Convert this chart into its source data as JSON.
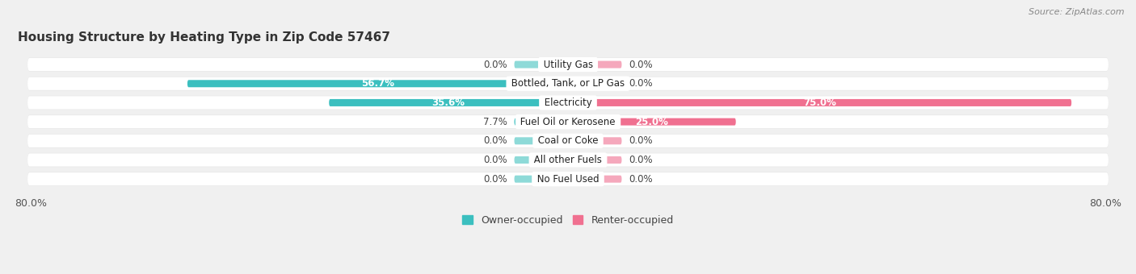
{
  "title": "Housing Structure by Heating Type in Zip Code 57467",
  "source": "Source: ZipAtlas.com",
  "categories": [
    "Utility Gas",
    "Bottled, Tank, or LP Gas",
    "Electricity",
    "Fuel Oil or Kerosene",
    "Coal or Coke",
    "All other Fuels",
    "No Fuel Used"
  ],
  "owner_values": [
    0.0,
    56.7,
    35.6,
    7.7,
    0.0,
    0.0,
    0.0
  ],
  "renter_values": [
    0.0,
    0.0,
    75.0,
    25.0,
    0.0,
    0.0,
    0.0
  ],
  "owner_color": "#3BBFBF",
  "renter_color": "#F07090",
  "owner_stub_color": "#8EDAD8",
  "renter_stub_color": "#F5A8BC",
  "owner_label": "Owner-occupied",
  "renter_label": "Renter-occupied",
  "xlim": 80.0,
  "stub_size": 8.0,
  "background_color": "#f0f0f0",
  "row_bg_color": "#e8e8e8",
  "row_inner_color": "#ffffff",
  "title_fontsize": 11,
  "source_fontsize": 8,
  "axis_label_fontsize": 9,
  "bar_label_fontsize": 8.5,
  "category_fontsize": 8.5
}
